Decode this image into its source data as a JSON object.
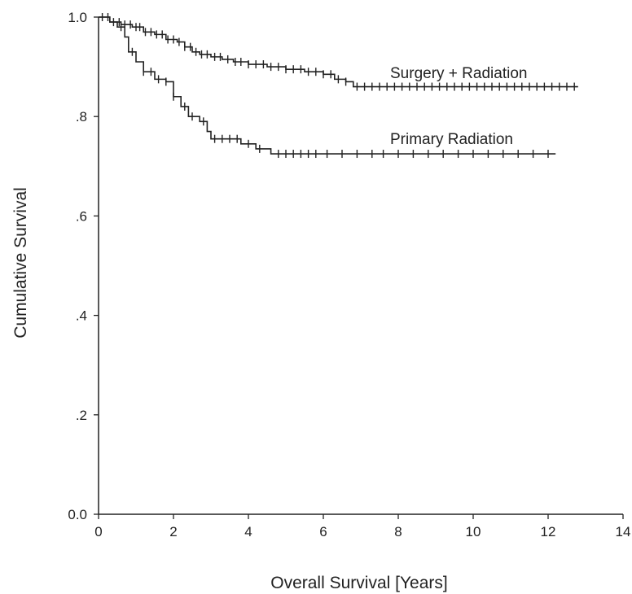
{
  "chart_data": {
    "type": "line",
    "title": "",
    "xlabel": "Overall Survival [Years]",
    "ylabel": "Cumulative Survival",
    "xlim": [
      0,
      14
    ],
    "ylim": [
      0,
      1
    ],
    "grid": false,
    "x_tick_labels": [
      "0",
      "2",
      "4",
      "6",
      "8",
      "10",
      "12",
      "14"
    ],
    "y_tick_labels": [
      "0.0",
      ".2",
      ".4",
      ".6",
      ".8",
      "1.0"
    ],
    "colors": {
      "line": "#222222",
      "background": "#ffffff"
    },
    "series": [
      {
        "name": "Surgery + Radiation",
        "points": [
          [
            0,
            1.0
          ],
          [
            0.2,
            1.0
          ],
          [
            0.3,
            0.99
          ],
          [
            0.6,
            0.985
          ],
          [
            0.9,
            0.98
          ],
          [
            1.2,
            0.97
          ],
          [
            1.5,
            0.965
          ],
          [
            1.8,
            0.955
          ],
          [
            2.1,
            0.95
          ],
          [
            2.3,
            0.94
          ],
          [
            2.5,
            0.93
          ],
          [
            2.7,
            0.925
          ],
          [
            3.0,
            0.92
          ],
          [
            3.3,
            0.915
          ],
          [
            3.6,
            0.91
          ],
          [
            4.0,
            0.905
          ],
          [
            4.5,
            0.9
          ],
          [
            5.0,
            0.895
          ],
          [
            5.5,
            0.89
          ],
          [
            6.0,
            0.885
          ],
          [
            6.3,
            0.875
          ],
          [
            6.6,
            0.87
          ],
          [
            6.8,
            0.86
          ],
          [
            12.8,
            0.86
          ]
        ],
        "censor_x": [
          0.1,
          0.25,
          0.4,
          0.55,
          0.7,
          0.85,
          1.0,
          1.1,
          1.25,
          1.4,
          1.55,
          1.7,
          1.85,
          2.0,
          2.15,
          2.3,
          2.45,
          2.6,
          2.75,
          2.9,
          3.1,
          3.25,
          3.45,
          3.65,
          3.8,
          4.0,
          4.2,
          4.4,
          4.6,
          4.8,
          5.0,
          5.2,
          5.4,
          5.6,
          5.8,
          6.0,
          6.2,
          6.4,
          6.6,
          6.9,
          7.1,
          7.3,
          7.5,
          7.7,
          7.9,
          8.1,
          8.3,
          8.5,
          8.7,
          8.9,
          9.1,
          9.3,
          9.5,
          9.7,
          9.9,
          10.1,
          10.3,
          10.5,
          10.7,
          10.9,
          11.1,
          11.3,
          11.5,
          11.7,
          11.9,
          12.1,
          12.3,
          12.5,
          12.7
        ]
      },
      {
        "name": "Primary Radiation",
        "points": [
          [
            0,
            1.0
          ],
          [
            0.3,
            0.99
          ],
          [
            0.5,
            0.98
          ],
          [
            0.7,
            0.96
          ],
          [
            0.8,
            0.93
          ],
          [
            1.0,
            0.91
          ],
          [
            1.2,
            0.89
          ],
          [
            1.5,
            0.875
          ],
          [
            1.8,
            0.87
          ],
          [
            2.0,
            0.84
          ],
          [
            2.2,
            0.82
          ],
          [
            2.4,
            0.8
          ],
          [
            2.7,
            0.79
          ],
          [
            2.9,
            0.77
          ],
          [
            3.0,
            0.755
          ],
          [
            3.8,
            0.745
          ],
          [
            4.2,
            0.735
          ],
          [
            4.6,
            0.725
          ],
          [
            12.2,
            0.725
          ]
        ],
        "censor_x": [
          0.6,
          0.9,
          1.2,
          1.4,
          1.6,
          1.8,
          2.0,
          2.3,
          2.5,
          2.8,
          3.1,
          3.3,
          3.5,
          3.7,
          4.0,
          4.3,
          4.8,
          5.0,
          5.2,
          5.4,
          5.6,
          5.8,
          6.1,
          6.5,
          6.9,
          7.3,
          7.6,
          8.0,
          8.4,
          8.8,
          9.2,
          9.6,
          10.0,
          10.4,
          10.8,
          11.2,
          11.6,
          12.0
        ]
      }
    ]
  }
}
